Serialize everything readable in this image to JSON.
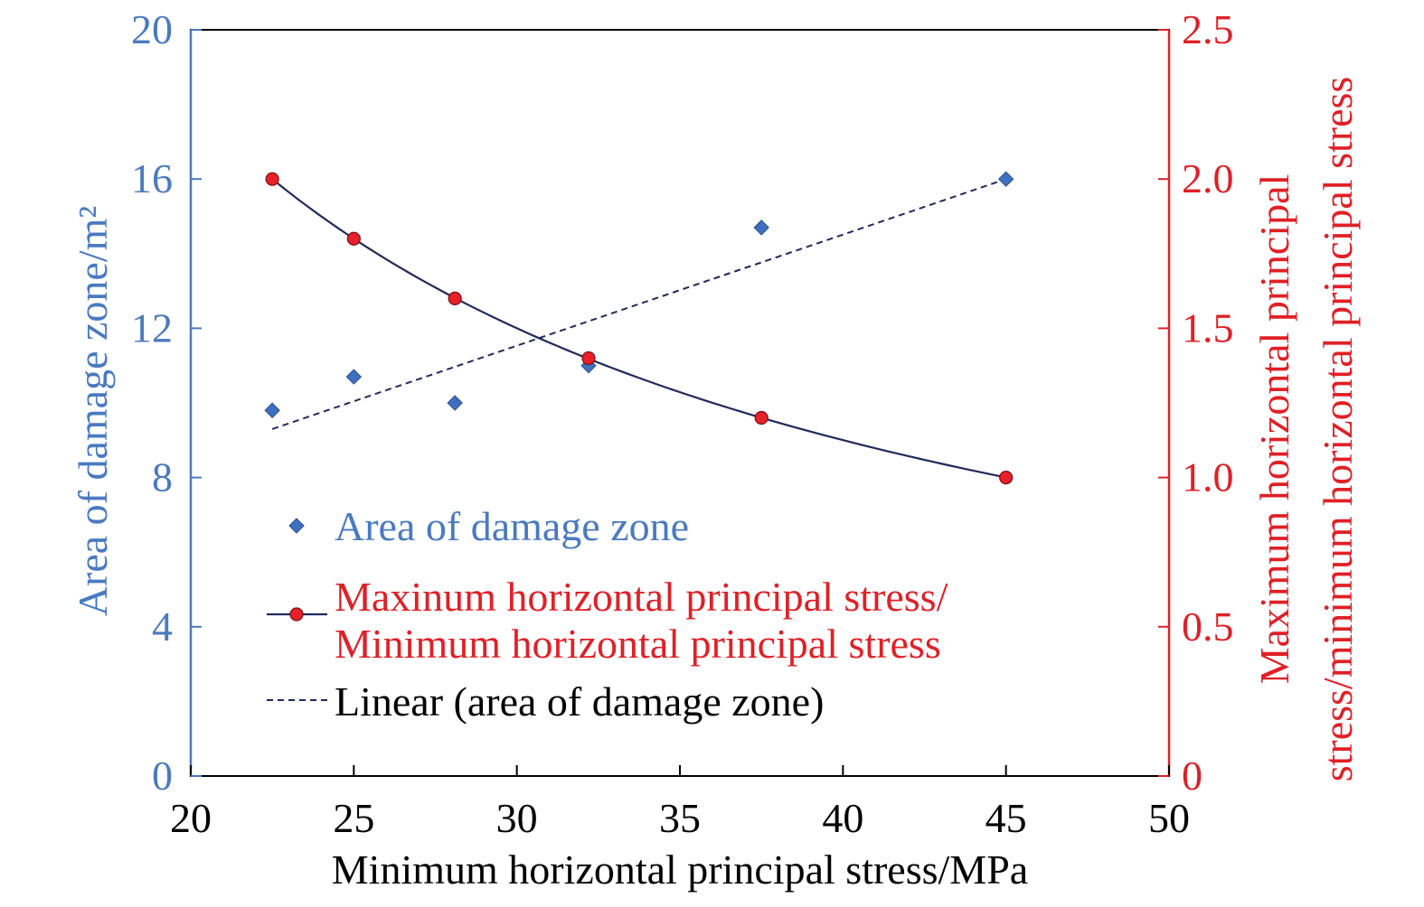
{
  "colors": {
    "left_axis": "#4a7ac0",
    "right_axis": "#e02026",
    "area_marker": "#3f6fbf",
    "ratio_marker": "#e8202a",
    "ratio_line": "#1f2a5c",
    "trend_line": "#1f2a5c",
    "frame": "#000000"
  },
  "chart_data": {
    "type": "scatter",
    "xlabel": "Minimum horizontal principal stress/MPa",
    "ylabel_left": "Area of damage zone/m²",
    "ylabel_right_line1": "Maximum horizontal principal",
    "ylabel_right_line2": "stress/minimum horizontal principal stress",
    "xlim": [
      20,
      50
    ],
    "ylim_left": [
      0,
      20
    ],
    "ylim_right": [
      0,
      2.5
    ],
    "x_ticks": [
      "20",
      "25",
      "30",
      "35",
      "40",
      "45",
      "50"
    ],
    "y_left_ticks": [
      "0",
      "4",
      "8",
      "12",
      "16",
      "20"
    ],
    "y_right_ticks": [
      "0",
      "0.5",
      "1.0",
      "1.5",
      "2.0",
      "2.5"
    ],
    "grid": false,
    "legend_position": "lower-left",
    "series": [
      {
        "name": "Area of damage zone",
        "axis": "left",
        "marker": "diamond",
        "x": [
          22.5,
          25.0,
          28.1,
          32.2,
          37.5,
          45.0
        ],
        "y": [
          9.8,
          10.7,
          10.0,
          11.0,
          14.7,
          16.0
        ]
      },
      {
        "name_line1": "Maxinum horizontal principal stress/",
        "name_line2": "Minimum horizontal principal stress",
        "axis": "right",
        "marker": "circle",
        "x": [
          22.5,
          25.0,
          28.1,
          32.2,
          37.5,
          45.0
        ],
        "y": [
          2.0,
          1.8,
          1.6,
          1.4,
          1.2,
          1.0
        ]
      },
      {
        "name": "Linear (area of damage zone)",
        "axis": "left",
        "style": "dashed",
        "x": [
          22.5,
          45.0
        ],
        "y": [
          9.3,
          16.0
        ]
      }
    ]
  }
}
